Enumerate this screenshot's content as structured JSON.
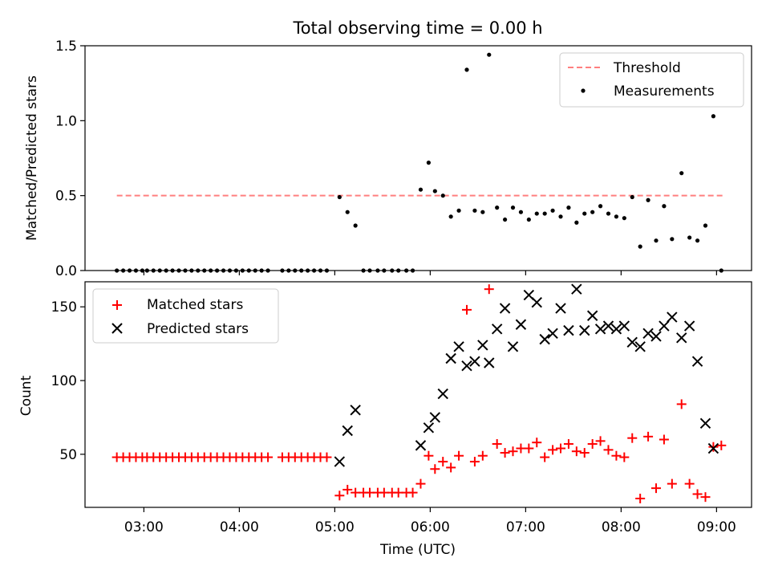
{
  "chart_data": [
    {
      "type": "scatter",
      "title": "Total observing time = 0.00 h",
      "xlabel": "",
      "ylabel": "Matched/Predicted stars",
      "ylim": [
        0,
        1.5
      ],
      "yticks": [
        "0.0",
        "0.5",
        "1.0",
        "1.5"
      ],
      "xlim": [
        "02:23",
        "09:22"
      ],
      "x_ticks_shown": [],
      "legend_position": "top-right",
      "threshold": {
        "name": "Threshold",
        "value": 0.5,
        "x_range": [
          "02:43",
          "09:05"
        ],
        "color": "#ff7f7f",
        "style": "dashed"
      },
      "series": [
        {
          "name": "Measurements",
          "color": "#000000",
          "marker": "dot",
          "points": [
            [
              "02:43",
              0
            ],
            [
              "02:47",
              0
            ],
            [
              "02:51",
              0
            ],
            [
              "02:55",
              0
            ],
            [
              "02:59",
              0
            ],
            [
              "03:02",
              0
            ],
            [
              "03:06",
              0
            ],
            [
              "03:10",
              0
            ],
            [
              "03:14",
              0
            ],
            [
              "03:18",
              0
            ],
            [
              "03:22",
              0
            ],
            [
              "03:26",
              0
            ],
            [
              "03:30",
              0
            ],
            [
              "03:34",
              0
            ],
            [
              "03:38",
              0
            ],
            [
              "03:42",
              0
            ],
            [
              "03:46",
              0
            ],
            [
              "03:50",
              0
            ],
            [
              "03:54",
              0
            ],
            [
              "03:58",
              0
            ],
            [
              "04:02",
              0
            ],
            [
              "04:06",
              0
            ],
            [
              "04:10",
              0
            ],
            [
              "04:14",
              0
            ],
            [
              "04:18",
              0
            ],
            [
              "04:27",
              0
            ],
            [
              "04:31",
              0
            ],
            [
              "04:35",
              0
            ],
            [
              "04:39",
              0
            ],
            [
              "04:43",
              0
            ],
            [
              "04:47",
              0
            ],
            [
              "04:51",
              0
            ],
            [
              "04:55",
              0
            ],
            [
              "05:03",
              0.49
            ],
            [
              "05:08",
              0.39
            ],
            [
              "05:13",
              0.3
            ],
            [
              "05:18",
              0
            ],
            [
              "05:22",
              0
            ],
            [
              "05:27",
              0
            ],
            [
              "05:31",
              0
            ],
            [
              "05:36",
              0
            ],
            [
              "05:40",
              0
            ],
            [
              "05:45",
              0
            ],
            [
              "05:49",
              0
            ],
            [
              "05:54",
              0.54
            ],
            [
              "05:59",
              0.72
            ],
            [
              "06:03",
              0.53
            ],
            [
              "06:08",
              0.5
            ],
            [
              "06:13",
              0.36
            ],
            [
              "06:18",
              0.4
            ],
            [
              "06:23",
              1.34
            ],
            [
              "06:28",
              0.4
            ],
            [
              "06:33",
              0.39
            ],
            [
              "06:37",
              1.44
            ],
            [
              "06:42",
              0.42
            ],
            [
              "06:47",
              0.34
            ],
            [
              "06:52",
              0.42
            ],
            [
              "06:57",
              0.39
            ],
            [
              "07:02",
              0.34
            ],
            [
              "07:07",
              0.38
            ],
            [
              "07:12",
              0.38
            ],
            [
              "07:17",
              0.4
            ],
            [
              "07:22",
              0.36
            ],
            [
              "07:27",
              0.42
            ],
            [
              "07:32",
              0.32
            ],
            [
              "07:37",
              0.38
            ],
            [
              "07:42",
              0.39
            ],
            [
              "07:47",
              0.43
            ],
            [
              "07:52",
              0.38
            ],
            [
              "07:57",
              0.36
            ],
            [
              "08:02",
              0.35
            ],
            [
              "08:07",
              0.49
            ],
            [
              "08:12",
              0.16
            ],
            [
              "08:17",
              0.47
            ],
            [
              "08:22",
              0.2
            ],
            [
              "08:27",
              0.43
            ],
            [
              "08:32",
              0.21
            ],
            [
              "08:38",
              0.65
            ],
            [
              "08:43",
              0.22
            ],
            [
              "08:48",
              0.2
            ],
            [
              "08:53",
              0.3
            ],
            [
              "08:58",
              1.03
            ],
            [
              "09:03",
              0
            ]
          ]
        }
      ]
    },
    {
      "type": "scatter",
      "title": "",
      "xlabel": "Time (UTC)",
      "ylabel": "Count",
      "ylim": [
        14,
        167
      ],
      "yticks": [
        "50",
        "100",
        "150"
      ],
      "xlim": [
        "02:23",
        "09:22"
      ],
      "xticks": [
        "03:00",
        "04:00",
        "05:00",
        "06:00",
        "07:00",
        "08:00",
        "09:00"
      ],
      "legend_position": "top-left",
      "series": [
        {
          "name": "Matched stars",
          "color": "#ff0000",
          "marker": "plus",
          "points": [
            [
              "02:43",
              48
            ],
            [
              "02:47",
              48
            ],
            [
              "02:51",
              48
            ],
            [
              "02:55",
              48
            ],
            [
              "02:59",
              48
            ],
            [
              "03:02",
              48
            ],
            [
              "03:06",
              48
            ],
            [
              "03:10",
              48
            ],
            [
              "03:14",
              48
            ],
            [
              "03:18",
              48
            ],
            [
              "03:22",
              48
            ],
            [
              "03:26",
              48
            ],
            [
              "03:30",
              48
            ],
            [
              "03:34",
              48
            ],
            [
              "03:38",
              48
            ],
            [
              "03:42",
              48
            ],
            [
              "03:46",
              48
            ],
            [
              "03:50",
              48
            ],
            [
              "03:54",
              48
            ],
            [
              "03:58",
              48
            ],
            [
              "04:02",
              48
            ],
            [
              "04:06",
              48
            ],
            [
              "04:10",
              48
            ],
            [
              "04:14",
              48
            ],
            [
              "04:18",
              48
            ],
            [
              "04:27",
              48
            ],
            [
              "04:31",
              48
            ],
            [
              "04:35",
              48
            ],
            [
              "04:39",
              48
            ],
            [
              "04:43",
              48
            ],
            [
              "04:47",
              48
            ],
            [
              "04:51",
              48
            ],
            [
              "04:55",
              48
            ],
            [
              "05:03",
              22
            ],
            [
              "05:08",
              26
            ],
            [
              "05:13",
              24
            ],
            [
              "05:18",
              24
            ],
            [
              "05:22",
              24
            ],
            [
              "05:27",
              24
            ],
            [
              "05:31",
              24
            ],
            [
              "05:36",
              24
            ],
            [
              "05:40",
              24
            ],
            [
              "05:45",
              24
            ],
            [
              "05:49",
              24
            ],
            [
              "05:54",
              30
            ],
            [
              "05:59",
              49
            ],
            [
              "06:03",
              40
            ],
            [
              "06:08",
              45
            ],
            [
              "06:13",
              41
            ],
            [
              "06:18",
              49
            ],
            [
              "06:23",
              148
            ],
            [
              "06:28",
              45
            ],
            [
              "06:33",
              49
            ],
            [
              "06:37",
              162
            ],
            [
              "06:42",
              57
            ],
            [
              "06:47",
              51
            ],
            [
              "06:52",
              52
            ],
            [
              "06:57",
              54
            ],
            [
              "07:02",
              54
            ],
            [
              "07:07",
              58
            ],
            [
              "07:12",
              48
            ],
            [
              "07:17",
              53
            ],
            [
              "07:22",
              54
            ],
            [
              "07:27",
              57
            ],
            [
              "07:32",
              52
            ],
            [
              "07:37",
              51
            ],
            [
              "07:42",
              57
            ],
            [
              "07:47",
              59
            ],
            [
              "07:52",
              53
            ],
            [
              "07:57",
              49
            ],
            [
              "08:02",
              48
            ],
            [
              "08:07",
              61
            ],
            [
              "08:12",
              20
            ],
            [
              "08:17",
              62
            ],
            [
              "08:22",
              27
            ],
            [
              "08:27",
              60
            ],
            [
              "08:32",
              30
            ],
            [
              "08:38",
              84
            ],
            [
              "08:43",
              30
            ],
            [
              "08:48",
              23
            ],
            [
              "08:53",
              21
            ],
            [
              "08:58",
              55
            ],
            [
              "09:03",
              56
            ]
          ]
        },
        {
          "name": "Predicted stars",
          "color": "#000000",
          "marker": "x",
          "points": [
            [
              "05:03",
              45
            ],
            [
              "05:08",
              66
            ],
            [
              "05:13",
              80
            ],
            [
              "05:54",
              56
            ],
            [
              "05:59",
              68
            ],
            [
              "06:03",
              75
            ],
            [
              "06:08",
              91
            ],
            [
              "06:13",
              115
            ],
            [
              "06:18",
              123
            ],
            [
              "06:23",
              110
            ],
            [
              "06:28",
              113
            ],
            [
              "06:33",
              124
            ],
            [
              "06:37",
              112
            ],
            [
              "06:42",
              135
            ],
            [
              "06:47",
              149
            ],
            [
              "06:52",
              123
            ],
            [
              "06:57",
              138
            ],
            [
              "07:02",
              158
            ],
            [
              "07:07",
              153
            ],
            [
              "07:12",
              128
            ],
            [
              "07:17",
              132
            ],
            [
              "07:22",
              149
            ],
            [
              "07:27",
              134
            ],
            [
              "07:32",
              162
            ],
            [
              "07:37",
              134
            ],
            [
              "07:42",
              144
            ],
            [
              "07:47",
              135
            ],
            [
              "07:52",
              137
            ],
            [
              "07:57",
              135
            ],
            [
              "08:02",
              137
            ],
            [
              "08:07",
              126
            ],
            [
              "08:12",
              123
            ],
            [
              "08:17",
              132
            ],
            [
              "08:22",
              130
            ],
            [
              "08:27",
              137
            ],
            [
              "08:32",
              143
            ],
            [
              "08:38",
              129
            ],
            [
              "08:43",
              137
            ],
            [
              "08:48",
              113
            ],
            [
              "08:53",
              71
            ],
            [
              "08:58",
              54
            ]
          ]
        }
      ]
    }
  ]
}
